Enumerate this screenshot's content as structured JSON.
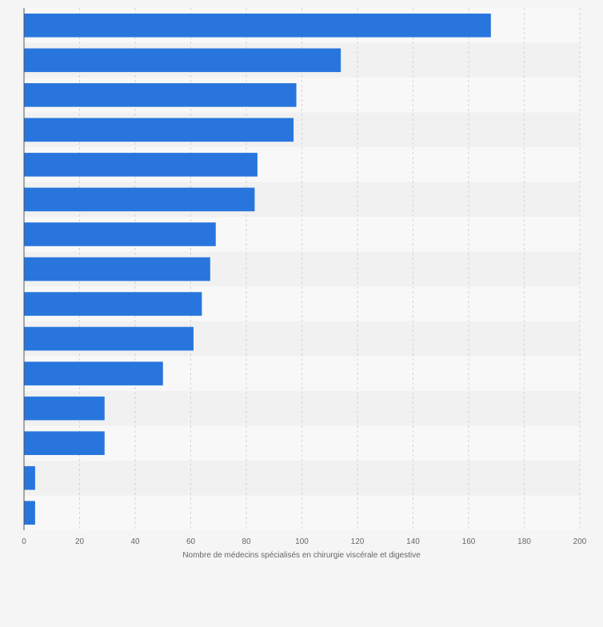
{
  "colors": {
    "bar": "#2876dd",
    "band_light": "#f8f8f8",
    "band_dark": "#f1f1f1",
    "grid": "#d4d4d4",
    "axis": "#555555",
    "tick_text": "#666666",
    "background": "#f5f5f5"
  },
  "chart_data": {
    "type": "bar",
    "orientation": "horizontal",
    "title": "",
    "xlabel": "Nombre de médecins spécialisés en chirurgie viscérale et digestive",
    "ylabel": "",
    "categories": [
      "",
      "",
      "",
      "",
      "",
      "",
      "",
      "",
      "",
      "",
      "",
      "",
      "",
      "",
      ""
    ],
    "values": [
      168,
      114,
      98,
      97,
      84,
      83,
      69,
      67,
      64,
      61,
      50,
      29,
      29,
      4,
      4
    ],
    "xlim": [
      0,
      200
    ],
    "xticks": [
      0,
      20,
      40,
      60,
      80,
      100,
      120,
      140,
      160,
      180,
      200
    ],
    "grid": "vertical-dashed",
    "legend": "none"
  }
}
